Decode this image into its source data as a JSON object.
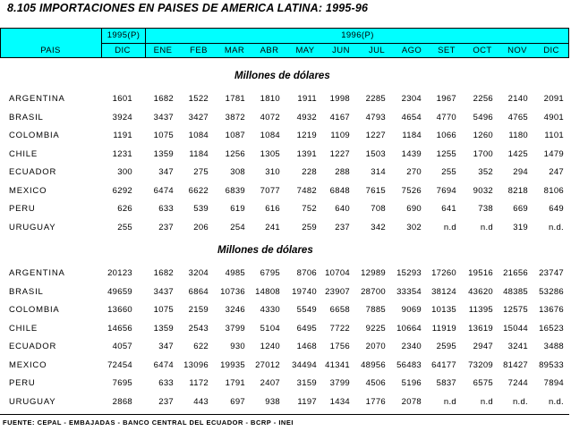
{
  "title": "8.105  IMPORTACIONES EN PAISES DE AMERICA LATINA: 1995-96",
  "header": {
    "pais": "PAIS",
    "year1995": "1995(P)",
    "year1996": "1996(P)",
    "months": [
      "DIC",
      "ENE",
      "FEB",
      "MAR",
      "ABR",
      "MAY",
      "JUN",
      "JUL",
      "AGO",
      "SET",
      "OCT",
      "NOV",
      "DIC"
    ]
  },
  "sections": [
    {
      "subtitle": "Millones de dólares",
      "rows": [
        {
          "country": "ARGENTINA",
          "values": [
            "1601",
            "1682",
            "1522",
            "1781",
            "1810",
            "1911",
            "1998",
            "2285",
            "2304",
            "1967",
            "2256",
            "2140",
            "2091"
          ]
        },
        {
          "country": "BRASIL",
          "values": [
            "3924",
            "3437",
            "3427",
            "3872",
            "4072",
            "4932",
            "4167",
            "4793",
            "4654",
            "4770",
            "5496",
            "4765",
            "4901"
          ]
        },
        {
          "country": "COLOMBIA",
          "values": [
            "1191",
            "1075",
            "1084",
            "1087",
            "1084",
            "1219",
            "1109",
            "1227",
            "1184",
            "1066",
            "1260",
            "1180",
            "1101"
          ]
        },
        {
          "country": "CHILE",
          "values": [
            "1231",
            "1359",
            "1184",
            "1256",
            "1305",
            "1391",
            "1227",
            "1503",
            "1439",
            "1255",
            "1700",
            "1425",
            "1479"
          ]
        },
        {
          "country": "ECUADOR",
          "values": [
            "300",
            "347",
            "275",
            "308",
            "310",
            "228",
            "288",
            "314",
            "270",
            "255",
            "352",
            "294",
            "247"
          ]
        },
        {
          "country": "MEXICO",
          "values": [
            "6292",
            "6474",
            "6622",
            "6839",
            "7077",
            "7482",
            "6848",
            "7615",
            "7526",
            "7694",
            "9032",
            "8218",
            "8106"
          ]
        },
        {
          "country": "PERU",
          "values": [
            "626",
            "633",
            "539",
            "619",
            "616",
            "752",
            "640",
            "708",
            "690",
            "641",
            "738",
            "669",
            "649"
          ]
        },
        {
          "country": "URUGUAY",
          "values": [
            "255",
            "237",
            "206",
            "254",
            "241",
            "259",
            "237",
            "342",
            "302",
            "n.d",
            "n.d",
            "319",
            "n.d."
          ]
        }
      ]
    },
    {
      "subtitle": "Millones de dólares",
      "rows": [
        {
          "country": "ARGENTINA",
          "values": [
            "20123",
            "1682",
            "3204",
            "4985",
            "6795",
            "8706",
            "10704",
            "12989",
            "15293",
            "17260",
            "19516",
            "21656",
            "23747"
          ]
        },
        {
          "country": "BRASIL",
          "values": [
            "49659",
            "3437",
            "6864",
            "10736",
            "14808",
            "19740",
            "23907",
            "28700",
            "33354",
            "38124",
            "43620",
            "48385",
            "53286"
          ]
        },
        {
          "country": "COLOMBIA",
          "values": [
            "13660",
            "1075",
            "2159",
            "3246",
            "4330",
            "5549",
            "6658",
            "7885",
            "9069",
            "10135",
            "11395",
            "12575",
            "13676"
          ]
        },
        {
          "country": "CHILE",
          "values": [
            "14656",
            "1359",
            "2543",
            "3799",
            "5104",
            "6495",
            "7722",
            "9225",
            "10664",
            "11919",
            "13619",
            "15044",
            "16523"
          ]
        },
        {
          "country": "ECUADOR",
          "values": [
            "4057",
            "347",
            "622",
            "930",
            "1240",
            "1468",
            "1756",
            "2070",
            "2340",
            "2595",
            "2947",
            "3241",
            "3488"
          ]
        },
        {
          "country": "MEXICO",
          "values": [
            "72454",
            "6474",
            "13096",
            "19935",
            "27012",
            "34494",
            "41341",
            "48956",
            "56483",
            "64177",
            "73209",
            "81427",
            "89533"
          ]
        },
        {
          "country": "PERU",
          "values": [
            "7695",
            "633",
            "1172",
            "1791",
            "2407",
            "3159",
            "3799",
            "4506",
            "5196",
            "5837",
            "6575",
            "7244",
            "7894"
          ]
        },
        {
          "country": "URUGUAY",
          "values": [
            "2868",
            "237",
            "443",
            "697",
            "938",
            "1197",
            "1434",
            "1776",
            "2078",
            "n.d",
            "n.d",
            "n.d.",
            "n.d."
          ]
        }
      ]
    }
  ],
  "footer": "FUENTE: CEPAL - EMBAJADAS - BANCO CENTRAL DEL ECUADOR - BCRP - INEI"
}
